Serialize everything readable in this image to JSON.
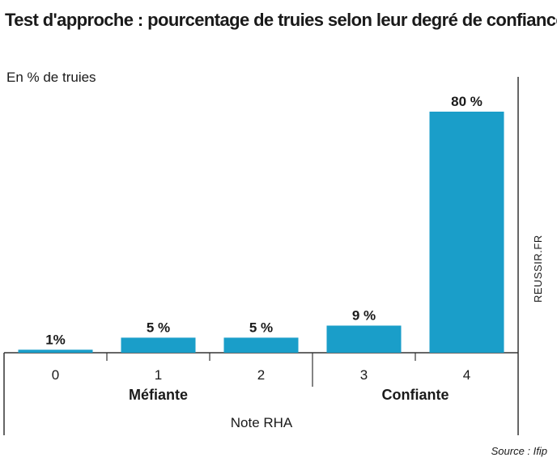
{
  "title": "Test d'approche : pourcentage de truies selon leur degré de confiance",
  "unit_label": "En % de truies",
  "source": "Source : Ifip",
  "credit": "REUSSIR.FR",
  "chart_data": {
    "type": "bar",
    "categories": [
      "0",
      "1",
      "2",
      "3",
      "4"
    ],
    "values": [
      1,
      5,
      5,
      9,
      80
    ],
    "value_labels": [
      "1%",
      "5 %",
      "5 %",
      "9 %",
      "80 %"
    ],
    "groups": [
      {
        "label": "Méfiante",
        "categories": [
          "0",
          "1",
          "2"
        ]
      },
      {
        "label": "Confiante",
        "categories": [
          "3",
          "4"
        ]
      }
    ],
    "xlabel": "Note RHA",
    "ylabel": "En % de truies",
    "ylim": [
      0,
      80
    ],
    "grid": false,
    "bar_color": "#1a9ec9"
  }
}
